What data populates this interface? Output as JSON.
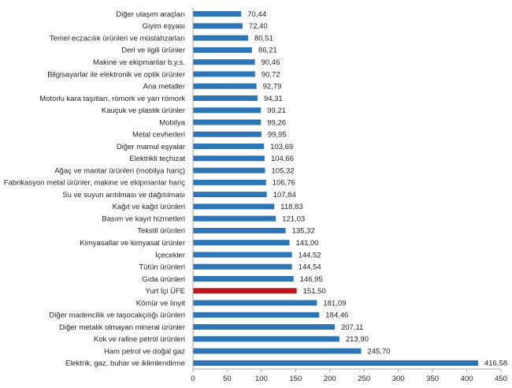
{
  "chart_data": {
    "type": "bar",
    "orientation": "horizontal",
    "categories": [
      "Diğer ulaşım araçları",
      "Giyim eşyası",
      "Temel eczacılık ürünleri ve müstahzarları",
      "Deri ve ilgili ürünler",
      "Makine ve ekipmanlar b.y.s.",
      "Bilgisayarlar ile elektronik ve optik ürünler",
      "Ana metaller",
      "Motorlu kara taşıtları, römork ve yarı römork",
      "Kauçuk ve plastik ürünler",
      "Mobilya",
      "Metal cevherleri",
      "Diğer mamul eşyalar",
      "Elektrikli teçhizat",
      "Ağaç ve mantar ürünleri (mobilya hariç)",
      "Fabrikasyon metal ürünler, makine ve ekipmanlar hariç",
      "Su ve suyun arıtılması ve dağıtılması",
      "Kağıt ve kağıt ürünleri",
      "Basım ve kayıt hizmetleri",
      "Tekstil ürünleri",
      "Kimyasallar ve kimyasal ürünler",
      "İçecekler",
      "Tütün ürünleri",
      "Gıda ürünleri",
      "Yurt İçi ÜFE",
      "Kömür ve linyit",
      "Diğer madencilik ve taşocakçılığı ürünleri",
      "Diğer metalik olmayan mineral ürünler",
      "Kok ve rafine petrol ürünleri",
      "Ham petrol ve doğal gaz",
      "Elektrik, gaz, buhar ve iklimlendirme"
    ],
    "values": [
      70.44,
      72.4,
      80.51,
      86.21,
      90.46,
      90.72,
      92.79,
      94.31,
      99.21,
      99.26,
      99.95,
      103.69,
      104.66,
      105.32,
      106.76,
      107.84,
      118.83,
      121.03,
      135.32,
      141.0,
      144.52,
      144.54,
      146.95,
      151.5,
      181.09,
      184.46,
      207.11,
      213.9,
      245.7,
      416.58
    ],
    "value_labels": [
      "70,44",
      "72,40",
      "80,51",
      "86,21",
      "90,46",
      "90,72",
      "92,79",
      "94,31",
      "99,21",
      "99,26",
      "99,95",
      "103,69",
      "104,66",
      "105,32",
      "106,76",
      "107,84",
      "118,83",
      "121,03",
      "135,32",
      "141,00",
      "144,52",
      "144,54",
      "146,95",
      "151,50",
      "181,09",
      "184,46",
      "207,11",
      "213,90",
      "245,70",
      "416,58"
    ],
    "highlight_category": "Yurt İçi ÜFE",
    "xlim": [
      0,
      450
    ],
    "xticks": [
      "0",
      "50",
      "100",
      "150",
      "200",
      "250",
      "300",
      "350",
      "400",
      "450"
    ],
    "grid": false,
    "colors": {
      "bar": "#2e75b6",
      "highlight": "#c0151b",
      "axis": "#a6a6a6"
    }
  }
}
